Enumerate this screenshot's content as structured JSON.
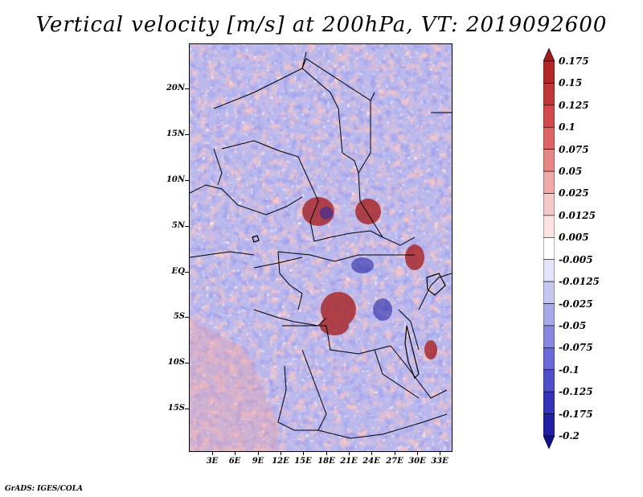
{
  "title": "Vertical velocity [m/s] at 200hPa, VT: 2019092600",
  "credit": "GrADS: IGES/COLA",
  "lat_labels": [
    "20N",
    "15N",
    "10N",
    "5N",
    "EQ",
    "5S",
    "10S",
    "15S"
  ],
  "lon_labels": [
    "3E",
    "6E",
    "9E",
    "12E",
    "15E",
    "18E",
    "21E",
    "24E",
    "27E",
    "30E",
    "33E"
  ],
  "colorbar": {
    "labels": [
      "0.175",
      "0.15",
      "0.125",
      "0.1",
      "0.075",
      "0.05",
      "0.025",
      "0.0125",
      "0.005",
      "-0.005",
      "-0.0125",
      "-0.025",
      "-0.05",
      "-0.075",
      "-0.1",
      "-0.125",
      "-0.175",
      "-0.2"
    ],
    "colors": [
      "#a11a1a",
      "#b32727",
      "#c43535",
      "#d24a4a",
      "#de6464",
      "#e88585",
      "#f1a8a8",
      "#f7c8c8",
      "#fbe3e3",
      "#ffffff",
      "#e3e3fb",
      "#c6c6f2",
      "#a7a7ea",
      "#8787e0",
      "#6a6ad6",
      "#4f4fcb",
      "#3434b9",
      "#2121a6",
      "#121290"
    ]
  }
}
